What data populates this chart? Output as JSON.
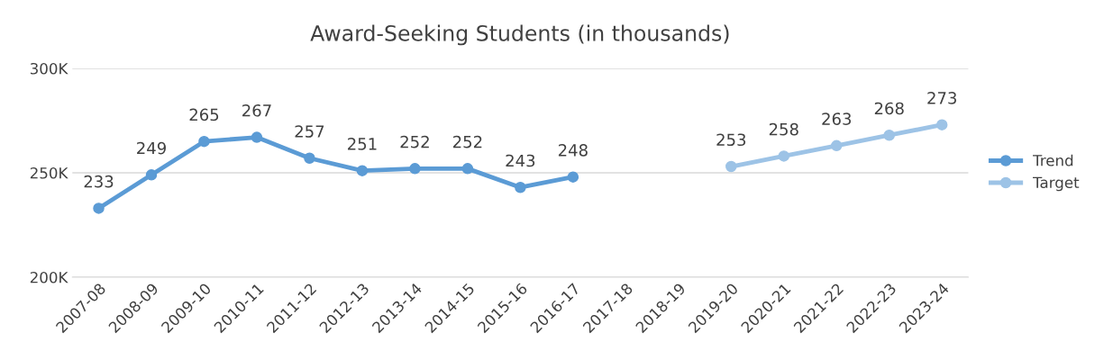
{
  "chart_data": {
    "type": "line",
    "title": "Award-Seeking Students (in thousands)",
    "categories": [
      "2007-08",
      "2008-09",
      "2009-10",
      "2010-11",
      "2011-12",
      "2012-13",
      "2013-14",
      "2014-15",
      "2015-16",
      "2016-17",
      "2017-18",
      "2018-19",
      "2019-20",
      "2020-21",
      "2021-22",
      "2022-23",
      "2023-24"
    ],
    "series": [
      {
        "name": "Trend",
        "color": "#5b9bd5",
        "values": [
          233,
          249,
          265,
          267,
          257,
          251,
          252,
          252,
          243,
          248,
          null,
          null,
          null,
          null,
          null,
          null,
          null
        ]
      },
      {
        "name": "Target",
        "color": "#9dc3e6",
        "values": [
          null,
          null,
          null,
          null,
          null,
          null,
          null,
          null,
          null,
          null,
          null,
          null,
          253,
          258,
          263,
          268,
          273
        ]
      }
    ],
    "ylim": [
      200,
      300
    ],
    "yticks": [
      {
        "value": 200,
        "label": "200K"
      },
      {
        "value": 250,
        "label": "250K"
      },
      {
        "value": 300,
        "label": "300K"
      }
    ],
    "grid": "y",
    "legend": "right",
    "marker": "circle",
    "data_labels": true
  }
}
